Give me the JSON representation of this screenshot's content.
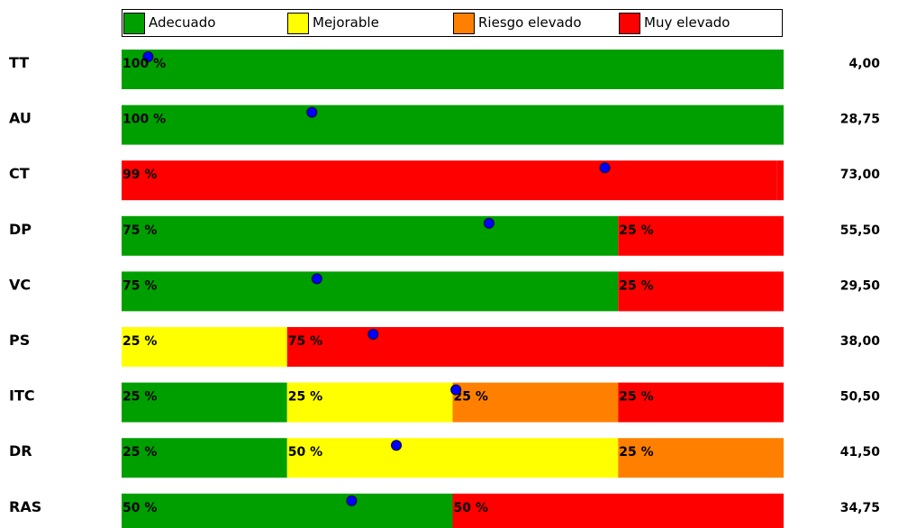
{
  "legend": [
    {
      "label": "Adecuado",
      "color": "#009f00"
    },
    {
      "label": "Mejorable",
      "color": "#ffff00"
    },
    {
      "label": "Riesgo elevado",
      "color": "#ff8000"
    },
    {
      "label": "Muy elevado",
      "color": "#ff0000"
    }
  ],
  "chart_data": {
    "type": "bar",
    "orientation": "horizontal-stacked-100",
    "categories": [
      "TT",
      "AU",
      "CT",
      "DP",
      "VC",
      "PS",
      "ITC",
      "DR",
      "RAS"
    ],
    "series": [
      {
        "name": "Adecuado",
        "color": "#009f00",
        "values": [
          100,
          100,
          0,
          75,
          75,
          0,
          25,
          25,
          50
        ]
      },
      {
        "name": "Mejorable",
        "color": "#ffff00",
        "values": [
          0,
          0,
          0,
          0,
          0,
          25,
          25,
          50,
          0
        ]
      },
      {
        "name": "Riesgo elevado",
        "color": "#ff8000",
        "values": [
          0,
          0,
          0,
          0,
          0,
          0,
          25,
          25,
          0
        ]
      },
      {
        "name": "Muy elevado",
        "color": "#ff0000",
        "values": [
          0,
          0,
          99,
          25,
          25,
          75,
          25,
          0,
          50
        ]
      }
    ],
    "segment_labels": [
      [
        "100 %"
      ],
      [
        "100 %"
      ],
      [
        "99 %"
      ],
      [
        "75 %",
        "25 %"
      ],
      [
        "75 %",
        "25 %"
      ],
      [
        "25 %",
        "75 %"
      ],
      [
        "25 %",
        "25 %",
        "25 %",
        "25 %"
      ],
      [
        "25 %",
        "50 %",
        "25 %"
      ],
      [
        "50 %",
        "50 %"
      ]
    ],
    "scores": [
      "4,00",
      "28,75",
      "73,00",
      "55,50",
      "29,50",
      "38,00",
      "50,50",
      "41,50",
      "34,75"
    ],
    "score_values": [
      4.0,
      28.75,
      73.0,
      55.5,
      29.5,
      38.0,
      50.5,
      41.5,
      34.75
    ],
    "marker_scale": [
      0,
      100
    ],
    "marker_color": "#0000ff",
    "xlim": [
      0,
      100
    ]
  }
}
